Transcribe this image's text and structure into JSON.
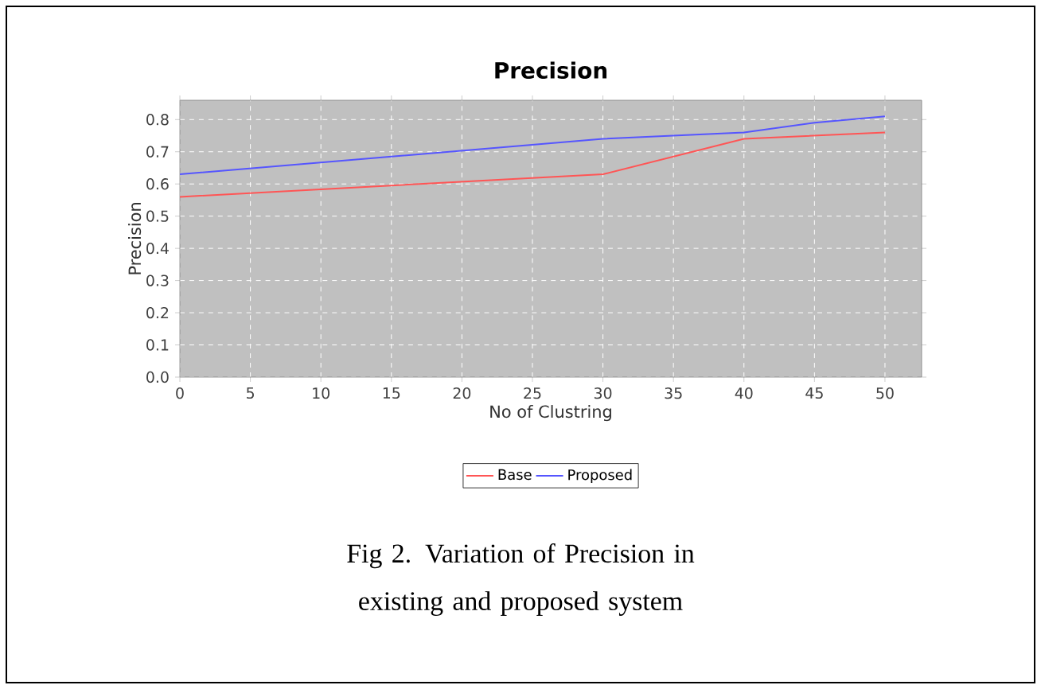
{
  "chart_data": {
    "type": "line",
    "title": "Precision",
    "xlabel": "No of Clustring",
    "ylabel": "Precision",
    "series": [
      {
        "name": "Base",
        "color": "#ff5555",
        "x": [
          0,
          30,
          40,
          45,
          50
        ],
        "values": [
          0.56,
          0.63,
          0.74,
          0.75,
          0.76
        ]
      },
      {
        "name": "Proposed",
        "color": "#5555ff",
        "x": [
          0,
          30,
          40,
          45,
          50
        ],
        "values": [
          0.63,
          0.74,
          0.76,
          0.79,
          0.81
        ]
      }
    ],
    "xlim": [
      0,
      52.6
    ],
    "ylim": [
      0,
      0.86
    ],
    "xticks": [
      0,
      5,
      10,
      15,
      20,
      25,
      30,
      35,
      40,
      45,
      50
    ],
    "yticks": [
      {
        "value": 0,
        "label": "0.0"
      },
      0.1,
      0.2,
      0.3,
      0.4,
      0.5,
      0.6,
      0.7,
      0.8
    ],
    "grid": true,
    "legend": "bottom",
    "marker": "none",
    "line_style": "solid",
    "annotations": [
      "Fig 2. Variation of Precision in existing and proposed system"
    ]
  }
}
